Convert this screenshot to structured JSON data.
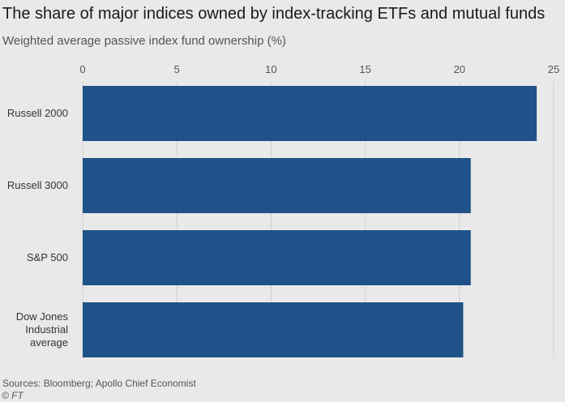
{
  "chart_data": {
    "type": "bar",
    "orientation": "horizontal",
    "title": "The share of major indices owned by index-tracking ETFs and mutual funds",
    "subtitle": "Weighted average passive index fund ownership (%)",
    "categories": [
      "Russell 2000",
      "Russell 3000",
      "S&P 500",
      "Dow Jones Industrial average"
    ],
    "category_lines": [
      [
        "Russell 2000"
      ],
      [
        "Russell 3000"
      ],
      [
        "S&P 500"
      ],
      [
        "Dow Jones",
        "Industrial",
        "average"
      ]
    ],
    "values": [
      24.1,
      20.6,
      20.6,
      20.2
    ],
    "xlim": [
      0,
      25
    ],
    "xticks": [
      0,
      5,
      10,
      15,
      20,
      25
    ],
    "xaxis_position": "top",
    "grid": true,
    "bar_color": "#1f5289",
    "grid_color": "#cfcfcf"
  },
  "footer": {
    "source": "Sources: Bloomberg; Apollo Chief Economist",
    "credit": "© FT"
  }
}
